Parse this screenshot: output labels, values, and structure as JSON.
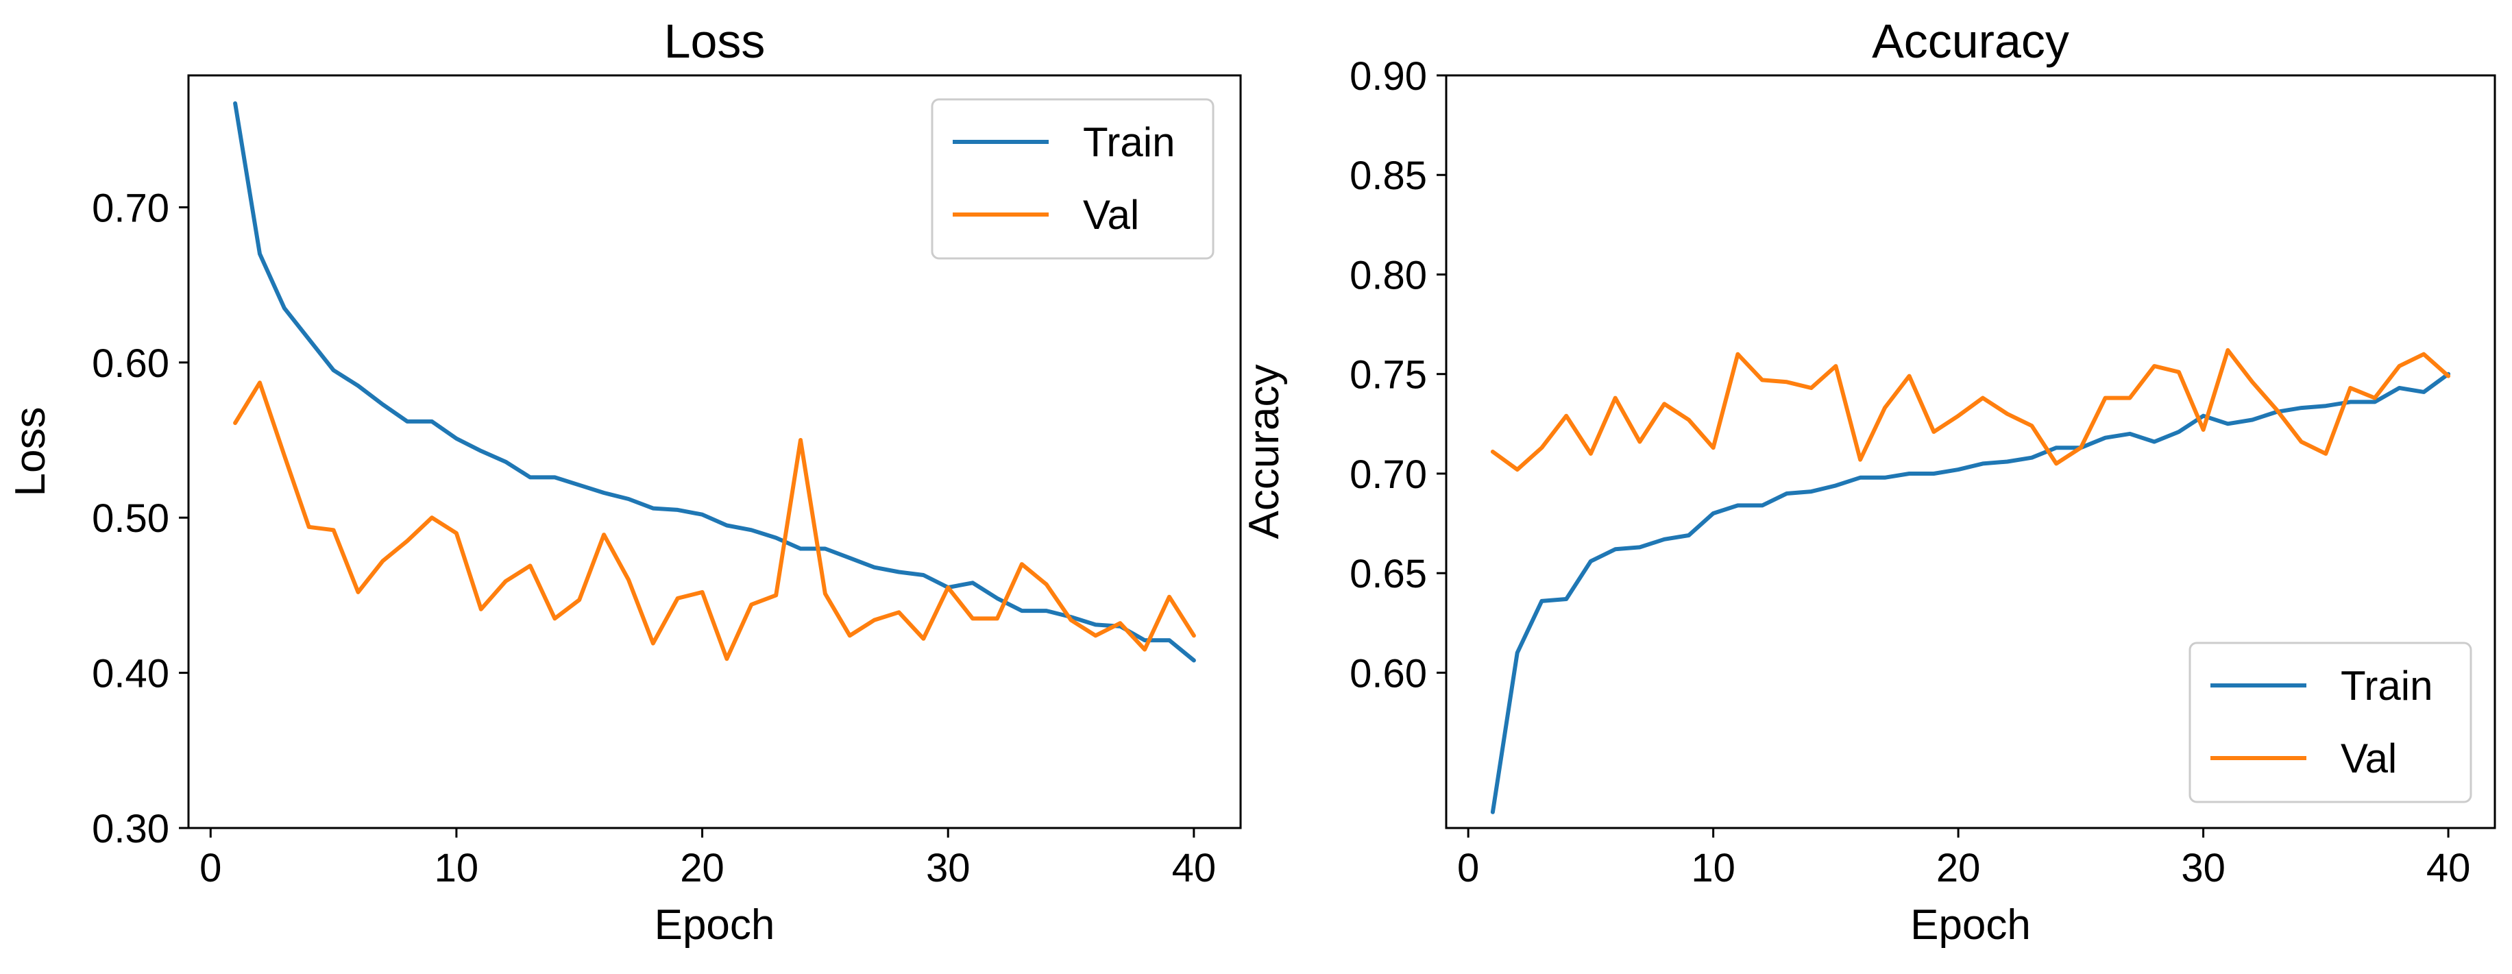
{
  "chart_data": [
    {
      "type": "line",
      "title": "Loss",
      "xlabel": "Epoch",
      "ylabel": "Loss",
      "xlim": [
        -0.9,
        41.9
      ],
      "ylim": [
        0.3,
        0.785
      ],
      "xticks": [
        0,
        10,
        20,
        30,
        40
      ],
      "xtick_labels": [
        "0",
        "10",
        "20",
        "30",
        "40"
      ],
      "yticks": [
        0.3,
        0.4,
        0.5,
        0.6,
        0.7
      ],
      "ytick_labels": [
        "0.30",
        "0.40",
        "0.50",
        "0.60",
        "0.70"
      ],
      "legend_position": "top-right",
      "grid": false,
      "x": [
        1,
        2,
        3,
        4,
        5,
        6,
        7,
        8,
        9,
        10,
        11,
        12,
        13,
        14,
        15,
        16,
        17,
        18,
        19,
        20,
        21,
        22,
        23,
        24,
        25,
        26,
        27,
        28,
        29,
        30,
        31,
        32,
        33,
        34,
        35,
        36,
        37,
        38,
        39,
        40
      ],
      "series": [
        {
          "name": "Train",
          "color": "#1f77b4",
          "values": [
            0.767,
            0.67,
            0.635,
            0.615,
            0.595,
            0.585,
            0.573,
            0.562,
            0.562,
            0.551,
            0.543,
            0.536,
            0.526,
            0.526,
            0.521,
            0.516,
            0.512,
            0.506,
            0.505,
            0.502,
            0.495,
            0.492,
            0.487,
            0.48,
            0.48,
            0.474,
            0.468,
            0.465,
            0.463,
            0.455,
            0.458,
            0.448,
            0.44,
            0.44,
            0.436,
            0.431,
            0.43,
            0.421,
            0.421,
            0.408
          ]
        },
        {
          "name": "Val",
          "color": "#ff7f0e",
          "values": [
            0.561,
            0.587,
            0.54,
            0.494,
            0.492,
            0.452,
            0.472,
            0.485,
            0.5,
            0.49,
            0.441,
            0.459,
            0.469,
            0.435,
            0.447,
            0.489,
            0.46,
            0.419,
            0.448,
            0.452,
            0.409,
            0.444,
            0.45,
            0.55,
            0.451,
            0.424,
            0.434,
            0.439,
            0.422,
            0.455,
            0.435,
            0.435,
            0.47,
            0.457,
            0.434,
            0.424,
            0.432,
            0.415,
            0.449,
            0.424
          ]
        }
      ]
    },
    {
      "type": "line",
      "title": "Accuracy",
      "xlabel": "Epoch",
      "ylabel": "Accuracy",
      "xlim": [
        -0.9,
        41.9
      ],
      "ylim": [
        0.522,
        0.9
      ],
      "xticks": [
        0,
        10,
        20,
        30,
        40
      ],
      "xtick_labels": [
        "0",
        "10",
        "20",
        "30",
        "40"
      ],
      "yticks": [
        0.6,
        0.65,
        0.7,
        0.75,
        0.8,
        0.85,
        0.9
      ],
      "ytick_labels": [
        "0.60",
        "0.65",
        "0.70",
        "0.75",
        "0.80",
        "0.85",
        "0.90"
      ],
      "legend_position": "bottom-right",
      "grid": false,
      "x": [
        1,
        2,
        3,
        4,
        5,
        6,
        7,
        8,
        9,
        10,
        11,
        12,
        13,
        14,
        15,
        16,
        17,
        18,
        19,
        20,
        21,
        22,
        23,
        24,
        25,
        26,
        27,
        28,
        29,
        30,
        31,
        32,
        33,
        34,
        35,
        36,
        37,
        38,
        39,
        40
      ],
      "series": [
        {
          "name": "Train",
          "color": "#1f77b4",
          "values": [
            0.53,
            0.61,
            0.636,
            0.637,
            0.656,
            0.662,
            0.663,
            0.667,
            0.669,
            0.68,
            0.684,
            0.684,
            0.69,
            0.691,
            0.694,
            0.698,
            0.698,
            0.7,
            0.7,
            0.702,
            0.705,
            0.706,
            0.708,
            0.713,
            0.713,
            0.718,
            0.72,
            0.716,
            0.721,
            0.729,
            0.725,
            0.727,
            0.731,
            0.733,
            0.734,
            0.736,
            0.736,
            0.743,
            0.741,
            0.75
          ]
        },
        {
          "name": "Val",
          "color": "#ff7f0e",
          "values": [
            0.711,
            0.702,
            0.713,
            0.729,
            0.71,
            0.738,
            0.716,
            0.735,
            0.727,
            0.713,
            0.76,
            0.747,
            0.746,
            0.743,
            0.754,
            0.707,
            0.733,
            0.749,
            0.721,
            0.729,
            0.738,
            0.73,
            0.724,
            0.705,
            0.713,
            0.738,
            0.738,
            0.754,
            0.751,
            0.722,
            0.762,
            0.746,
            0.732,
            0.716,
            0.71,
            0.743,
            0.738,
            0.754,
            0.76,
            0.749
          ]
        }
      ]
    }
  ]
}
